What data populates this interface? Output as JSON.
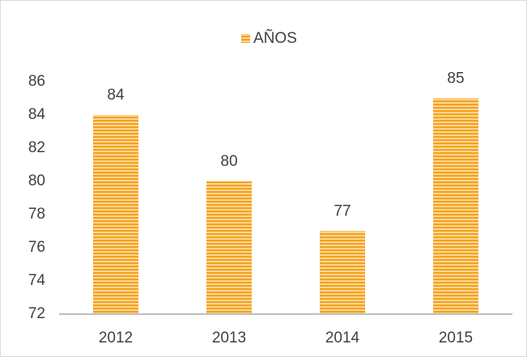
{
  "chart_data": {
    "type": "bar",
    "categories": [
      "2012",
      "2013",
      "2014",
      "2015"
    ],
    "series": [
      {
        "name": "AÑOS",
        "color": "#f5a21e",
        "values": [
          84,
          80,
          77,
          85
        ]
      }
    ],
    "ylim": [
      72,
      86
    ],
    "yticks": [
      72,
      74,
      76,
      78,
      80,
      82,
      84,
      86
    ],
    "grid": false,
    "legend": "top",
    "data_labels": true
  }
}
